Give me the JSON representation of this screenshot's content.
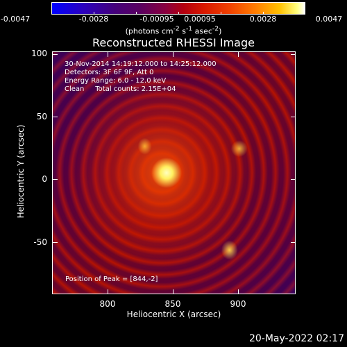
{
  "colorbar": {
    "ticks": [
      "-0.0047",
      "-0.0028",
      "-0.00095",
      "0.00095",
      "0.0028",
      "0.0047"
    ],
    "unit_html": "(photons cm<sup>-2</sup> s<sup>-1</sup> asec<sup>-2</sup>)"
  },
  "title": "Reconstructed RHESSI Image",
  "info": {
    "line1": "30-Nov-2014 14:19:12.000 to 14:25:12.000",
    "line2": "Detectors: 3F 6F 9F, Att 0",
    "line3": "Energy Range: 6.0 - 12.0 keV",
    "line4": "Clean     Total counts: 2.15E+04",
    "peak": "Position of Peak = [844,-2]"
  },
  "axes": {
    "xlabel": "Heliocentric X (arcsec)",
    "ylabel": "Heliocentric Y (arcsec)",
    "xticks": [
      "800",
      "850",
      "900"
    ],
    "yticks": [
      "100",
      "50",
      "0",
      "-50"
    ]
  },
  "datestamp": "20-May-2022 02:17"
}
